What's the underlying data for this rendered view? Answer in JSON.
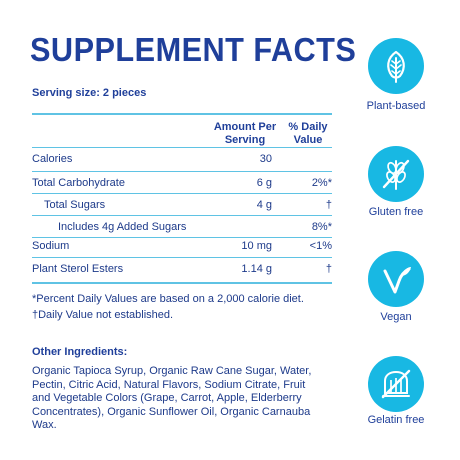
{
  "title": "SUPPLEMENT FACTS",
  "serving_size": "Serving size: 2 pieces",
  "headers": {
    "amount": "Amount Per Serving",
    "daily_value": "% Daily Value"
  },
  "rows": [
    {
      "name": "Calories",
      "amount": "30",
      "dv": ""
    },
    {
      "name": "Total Carbohydrate",
      "amount": "6 g",
      "dv": "2%*"
    },
    {
      "name": "Total Sugars",
      "amount": "4 g",
      "dv": "†"
    },
    {
      "name": "Includes 4g Added Sugars",
      "amount": "",
      "dv": "8%*"
    },
    {
      "name": "Sodium",
      "amount": "10 mg",
      "dv": "<1%"
    },
    {
      "name": "Plant Sterol Esters",
      "amount": "1.14 g",
      "dv": "†"
    }
  ],
  "footnotes": [
    "*Percent Daily Values are based on a 2,000 calorie diet.",
    "†Daily Value not established."
  ],
  "other_ingredients": {
    "title": "Other Ingredients:",
    "text": "Organic Tapioca Syrup, Organic Raw Cane Sugar, Water, Pectin, Citric Acid, Natural Flavors, Sodium Citrate, Fruit and Vegetable Colors (Grape, Carrot, Apple, Elderberry Concentrates), Organic Sunflower Oil, Organic Carnauba Wax."
  },
  "badges": [
    {
      "label": "Plant-based",
      "icon": "leaf-icon"
    },
    {
      "label": "Gluten free",
      "icon": "no-wheat-icon"
    },
    {
      "label": "Vegan",
      "icon": "vegan-v-icon"
    },
    {
      "label": "Gelatin free",
      "icon": "no-gelatin-icon"
    }
  ],
  "colors": {
    "navy": "#1f3f9a",
    "accent": "#18b8e3",
    "rule": "#5fc3e4"
  }
}
